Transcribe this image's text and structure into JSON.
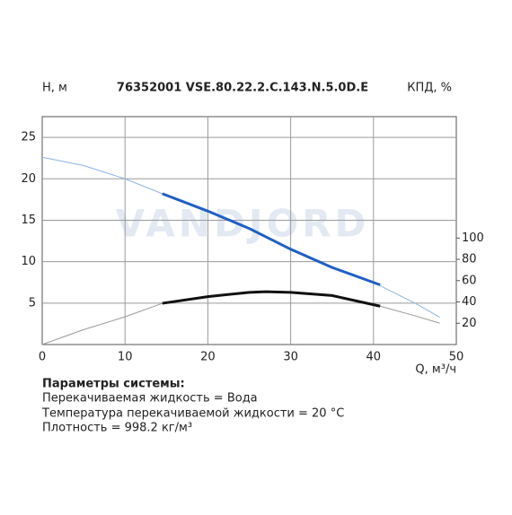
{
  "chart_data": {
    "type": "line",
    "title": "76352001 VSE.80.22.2.C.143.N.5.0D.E",
    "y_label": "Н, м",
    "y2_label": "КПД, %",
    "x_label": "Q, м³/ч",
    "watermark": "VANDJORD",
    "xlim": [
      0,
      50
    ],
    "xticks": [
      0,
      10,
      20,
      30,
      40,
      50
    ],
    "ylim": [
      0,
      27.5
    ],
    "yticks": [
      5,
      10,
      15,
      20,
      25
    ],
    "y2lim": [
      0,
      214
    ],
    "y2ticks": [
      20,
      40,
      60,
      80,
      100
    ],
    "grid": true,
    "series": [
      {
        "color": "#8fb3e6",
        "line_width": 1,
        "x": [
          0,
          5,
          10,
          15,
          20,
          25,
          30,
          35,
          40,
          45,
          48
        ],
        "values": [
          22.6,
          21.6,
          20.0,
          18.0,
          16.1,
          14.0,
          11.5,
          9.3,
          7.5,
          5.0,
          3.3
        ]
      },
      {
        "color": "#1f5fc4",
        "line_width": 3,
        "x": [
          14.5,
          20,
          25,
          30,
          35,
          40.8
        ],
        "values": [
          18.2,
          16.1,
          14.0,
          11.5,
          9.3,
          7.2
        ]
      },
      {
        "color": "#999999",
        "line_width": 1,
        "axis": "y2",
        "x": [
          0,
          5,
          10,
          14.5,
          20,
          25,
          27,
          30,
          35,
          40.8,
          45,
          48
        ],
        "values": [
          0,
          14,
          26,
          38.7,
          45,
          49,
          49.6,
          49,
          46,
          36,
          27,
          20
        ]
      },
      {
        "color": "#111111",
        "line_width": 3,
        "axis": "y2",
        "x": [
          14.5,
          20,
          25,
          27,
          30,
          35,
          40.8
        ],
        "values": [
          38.7,
          45,
          49,
          49.6,
          49,
          46,
          36
        ]
      }
    ]
  },
  "parameters": {
    "title": "Параметры системы:",
    "lines": [
      "Перекачиваемая жидкость = Вода",
      "Температура перекачиваемой жидкости = 20 °C",
      "Плотность = 998.2 кг/м³"
    ]
  }
}
